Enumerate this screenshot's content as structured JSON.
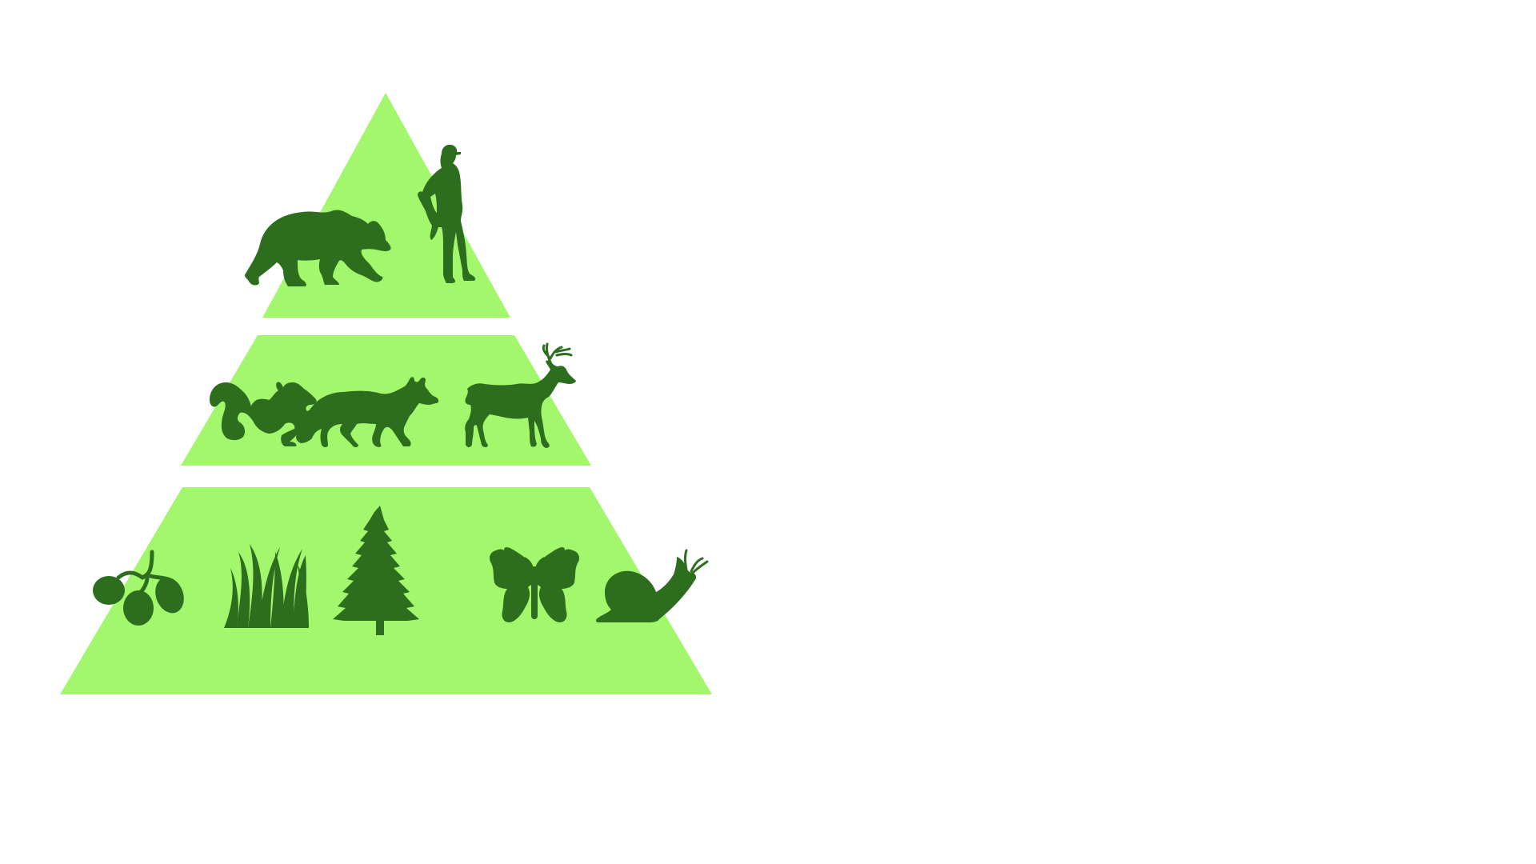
{
  "colors": {
    "background": "#ffffff",
    "tier": "#a3f76c",
    "icon": "#2d6e1e"
  },
  "pyramid": {
    "levels": [
      {
        "name": "top",
        "icons": [
          "bear-icon",
          "hunter-icon"
        ]
      },
      {
        "name": "middle",
        "icons": [
          "squirrel-icon",
          "fox-icon",
          "deer-icon"
        ]
      },
      {
        "name": "bottom",
        "icons": [
          "berries-icon",
          "grass-icon",
          "pine-tree-icon",
          "butterfly-icon",
          "snail-icon"
        ]
      }
    ]
  }
}
